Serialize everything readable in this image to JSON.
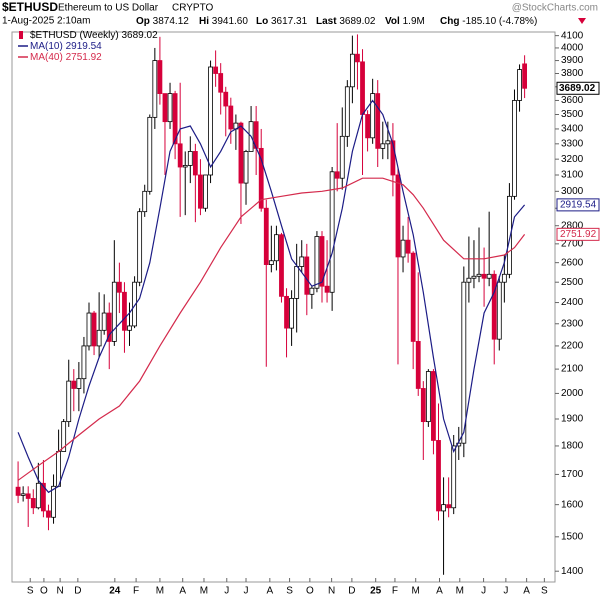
{
  "chart_data": {
    "type": "candlestick",
    "title": "$ETHUSD",
    "subtitle": "Ethereum to US Dollar",
    "exchange": "CRYPTO",
    "date": "1-Aug-2025 2:10am",
    "stats": [
      {
        "label": "Op",
        "text": "3874.12"
      },
      {
        "label": "Hi",
        "text": "3941.60"
      },
      {
        "label": "Lo",
        "text": "3617.31"
      },
      {
        "label": "Last",
        "text": "3689.02"
      },
      {
        "label": "Vol",
        "text": "1.9M"
      },
      {
        "label": "Chg",
        "text": "-185.10 (-4.78%)"
      }
    ],
    "source": "@StockCharts.com",
    "legend_label": "$ETHUSD (Weekly)",
    "up_color": "#ffffff",
    "down_color": "#d6003a",
    "log_scale": true,
    "grid": false,
    "xlim": [
      -1.2,
      106
    ],
    "ylim": [
      1370,
      4130
    ],
    "yticks": [
      1400,
      1500,
      1600,
      1700,
      1800,
      1900,
      2000,
      2100,
      2200,
      2300,
      2400,
      2500,
      2600,
      2700,
      2800,
      2900,
      3000,
      3100,
      3200,
      3300,
      3400,
      3500,
      3600,
      3700,
      3800,
      3900,
      4000,
      4100
    ],
    "xticks": [
      {
        "value": 2.4,
        "label": "S"
      },
      {
        "value": 5.1,
        "label": "O"
      },
      {
        "value": 8.3,
        "label": "N"
      },
      {
        "value": 11.8,
        "label": "D"
      },
      {
        "value": 19.1,
        "label": "24"
      },
      {
        "value": 23.3,
        "label": "F"
      },
      {
        "value": 28.0,
        "label": "M"
      },
      {
        "value": 32.5,
        "label": "A"
      },
      {
        "value": 36.7,
        "label": "M"
      },
      {
        "value": 41.2,
        "label": "J"
      },
      {
        "value": 45.0,
        "label": "J"
      },
      {
        "value": 49.7,
        "label": "A"
      },
      {
        "value": 53.6,
        "label": "S"
      },
      {
        "value": 57.6,
        "label": "O"
      },
      {
        "value": 61.9,
        "label": "N"
      },
      {
        "value": 65.9,
        "label": "D"
      },
      {
        "value": 70.6,
        "label": "25"
      },
      {
        "value": 74.4,
        "label": "F"
      },
      {
        "value": 78.5,
        "label": "M"
      },
      {
        "value": 83.2,
        "label": "A"
      },
      {
        "value": 87.2,
        "label": "M"
      },
      {
        "value": 91.9,
        "label": "J"
      },
      {
        "value": 96.3,
        "label": "J"
      },
      {
        "value": 100.4,
        "label": "A"
      },
      {
        "value": 103.9,
        "label": "S"
      }
    ],
    "open": [
      1657,
      1630,
      1635,
      1620,
      1590,
      1670,
      1580,
      1560,
      1660,
      1780,
      1890,
      2050,
      2020,
      2060,
      2200,
      2350,
      2200,
      2270,
      2350,
      2220,
      2500,
      2450,
      2270,
      2290,
      2500,
      2880,
      3000,
      3480,
      3900,
      3650,
      3450,
      3650,
      3300,
      3150,
      3160,
      3250,
      3100,
      2900,
      3100,
      3850,
      3800,
      3660,
      3560,
      3400,
      3440,
      3050,
      3250,
      3450,
      3270,
      2900,
      2590,
      2610,
      2750,
      2430,
      2280,
      2420,
      2580,
      2630,
      2440,
      2470,
      2740,
      2480,
      2450,
      3120,
      3080,
      3350,
      3700,
      3950,
      3890,
      3500,
      3340,
      3650,
      3270,
      3300,
      3320,
      3100,
      2630,
      2720,
      2650,
      2220,
      2020,
      1890,
      2090,
      1820,
      1580,
      1600,
      1590,
      1800,
      1810,
      2500,
      2520,
      2530,
      2540,
      2520,
      2540,
      2230,
      2500,
      2540,
      2970,
      3600,
      3874.12
    ],
    "high": [
      1745,
      1660,
      1660,
      1650,
      1740,
      1750,
      1600,
      1700,
      1860,
      1900,
      2140,
      2100,
      2130,
      2240,
      2400,
      2360,
      2450,
      2440,
      2400,
      2720,
      2600,
      2500,
      2400,
      2530,
      2900,
      3040,
      3500,
      4000,
      4090,
      3650,
      3730,
      3670,
      3730,
      3250,
      3350,
      3300,
      3200,
      3100,
      3900,
      3980,
      3880,
      3700,
      3620,
      3500,
      3450,
      3260,
      3560,
      3560,
      3400,
      2950,
      2800,
      2800,
      2760,
      2470,
      2460,
      2700,
      2720,
      2700,
      2480,
      2770,
      2770,
      2720,
      3150,
      3440,
      3550,
      3750,
      4100,
      4110,
      3990,
      3530,
      3760,
      3750,
      3450,
      3450,
      3440,
      3150,
      2800,
      2850,
      2660,
      2550,
      2050,
      2100,
      2100,
      1960,
      1690,
      1690,
      1840,
      1870,
      2580,
      2740,
      2720,
      2790,
      2680,
      2880,
      2560,
      2530,
      2640,
      3050,
      3680,
      3870,
      3941.6
    ],
    "low": [
      1605,
      1610,
      1530,
      1570,
      1585,
      1560,
      1520,
      1540,
      1660,
      1780,
      1870,
      1930,
      1930,
      2000,
      2180,
      2160,
      2150,
      2250,
      2100,
      2200,
      2350,
      2170,
      2200,
      2280,
      2480,
      2850,
      2980,
      3400,
      3570,
      3100,
      3400,
      3200,
      2850,
      2860,
      3050,
      2820,
      2860,
      2880,
      3050,
      3700,
      3500,
      3350,
      3300,
      3260,
      2810,
      2920,
      3250,
      3100,
      2880,
      2110,
      2550,
      2560,
      2400,
      2150,
      2200,
      2260,
      2550,
      2340,
      2370,
      2450,
      2400,
      2400,
      2360,
      3000,
      3010,
      3280,
      3580,
      3680,
      3100,
      3250,
      3300,
      3150,
      3200,
      3200,
      2970,
      2120,
      2550,
      2600,
      2100,
      1990,
      1750,
      1870,
      1770,
      1550,
      1390,
      1560,
      1570,
      1750,
      1760,
      2400,
      2470,
      2500,
      2380,
      2480,
      2120,
      2180,
      2400,
      2520,
      2950,
      3520,
      3617.31
    ],
    "close": [
      1630,
      1635,
      1620,
      1590,
      1670,
      1580,
      1560,
      1660,
      1780,
      1890,
      2050,
      2020,
      2060,
      2200,
      2350,
      2200,
      2270,
      2350,
      2220,
      2500,
      2450,
      2270,
      2290,
      2500,
      2880,
      3000,
      3480,
      3900,
      3650,
      3450,
      3650,
      3300,
      3150,
      3160,
      3250,
      3100,
      2900,
      3100,
      3850,
      3800,
      3660,
      3560,
      3400,
      3440,
      3050,
      3250,
      3450,
      3270,
      2900,
      2590,
      2610,
      2750,
      2430,
      2280,
      2420,
      2580,
      2630,
      2440,
      2470,
      2740,
      2480,
      2450,
      3120,
      3080,
      3350,
      3700,
      3950,
      3890,
      3500,
      3340,
      3650,
      3270,
      3300,
      3320,
      3100,
      2630,
      2720,
      2650,
      2220,
      2020,
      1890,
      2090,
      1820,
      1580,
      1600,
      1590,
      1800,
      1810,
      2500,
      2520,
      2530,
      2540,
      2520,
      2540,
      2230,
      2500,
      2540,
      2970,
      3600,
      3830,
      3689.02
    ],
    "series": [
      {
        "name": "MA(10)",
        "color": "#1c1c86",
        "x": [
          0,
          2,
          4,
          6,
          8,
          10,
          12,
          14,
          16,
          18,
          20,
          22,
          24,
          26,
          28,
          30,
          32,
          34,
          36,
          38,
          40,
          42,
          44,
          46,
          48,
          50,
          52,
          54,
          56,
          58,
          60,
          62,
          64,
          66,
          68,
          70,
          72,
          74,
          76,
          78,
          80,
          82,
          84,
          86,
          88,
          90,
          92,
          94,
          96,
          98,
          100
        ],
        "values": [
          1850,
          1760,
          1680,
          1640,
          1660,
          1760,
          1900,
          2030,
          2150,
          2250,
          2300,
          2350,
          2420,
          2600,
          2900,
          3250,
          3400,
          3420,
          3300,
          3150,
          3250,
          3380,
          3420,
          3350,
          3200,
          3000,
          2800,
          2620,
          2550,
          2480,
          2500,
          2650,
          2900,
          3250,
          3500,
          3600,
          3500,
          3300,
          3000,
          2750,
          2450,
          2150,
          1900,
          1780,
          1850,
          2100,
          2350,
          2450,
          2600,
          2850,
          2919.54
        ]
      },
      {
        "name": "MA(40)",
        "color": "#d42a4c",
        "x": [
          0,
          4,
          8,
          12,
          16,
          20,
          24,
          28,
          32,
          36,
          40,
          44,
          48,
          52,
          56,
          60,
          64,
          68,
          72,
          76,
          78,
          80,
          84,
          88,
          92,
          96,
          98,
          100
        ],
        "values": [
          1680,
          1730,
          1780,
          1840,
          1900,
          1950,
          2050,
          2200,
          2350,
          2500,
          2680,
          2850,
          2950,
          2970,
          2990,
          3000,
          3020,
          3080,
          3080,
          3040,
          2980,
          2900,
          2720,
          2620,
          2620,
          2640,
          2680,
          2751.92
        ]
      }
    ]
  }
}
